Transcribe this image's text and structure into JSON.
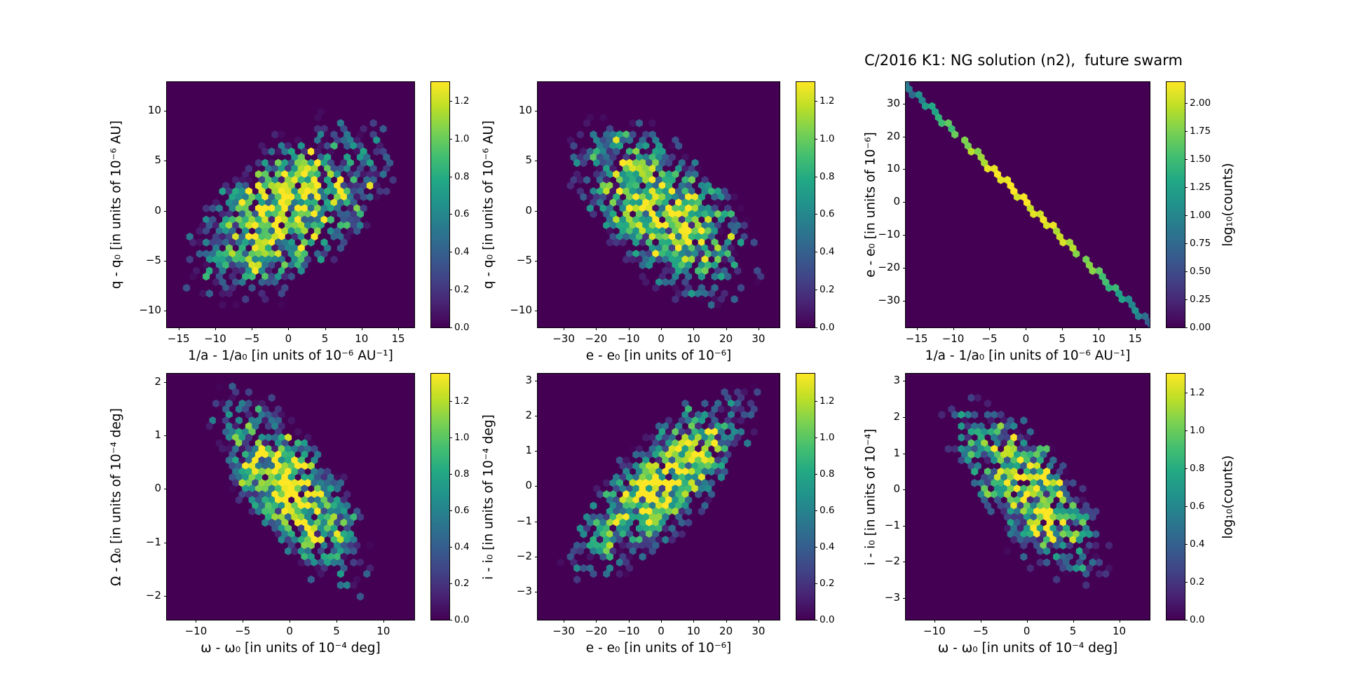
{
  "figure": {
    "title": "C/2016 K1: NG solution (n2),  future swarm",
    "background": "#ffffff",
    "colormap": "viridis",
    "colormap_stops": [
      "#440154",
      "#482475",
      "#414487",
      "#355f8d",
      "#2a788e",
      "#21918c",
      "#22a884",
      "#44bf70",
      "#7ad151",
      "#bddf26",
      "#fde725"
    ]
  },
  "chart_data": [
    {
      "id": "a",
      "row": 0,
      "col": 0,
      "type": "hexbin",
      "xlabel": "1/a - 1/a₀ [in units of 10⁻⁶ AU⁻¹]",
      "ylabel": "q - q₀ [in units of 10⁻⁶ AU]",
      "xlim": [
        -16.6,
        17.2
      ],
      "ylim": [
        -11.7,
        12.9
      ],
      "xticks": [
        -15,
        -10,
        -5,
        0,
        5,
        10,
        15
      ],
      "yticks": [
        -10,
        -5,
        0,
        5,
        10
      ],
      "distribution": {
        "kind": "gaussian2d",
        "center": [
          0,
          0
        ],
        "sigma": [
          5.5,
          3.6
        ],
        "rho": 0.55,
        "peak_counts": 18
      },
      "colorbar": {
        "ticks": [
          0.0,
          0.2,
          0.4,
          0.6,
          0.8,
          1.0,
          1.2
        ],
        "vmax": 1.3,
        "decimals": 1,
        "label": ""
      },
      "seed": 101
    },
    {
      "id": "b",
      "row": 0,
      "col": 1,
      "type": "hexbin",
      "xlabel": "e - e₀ [in units of 10⁻⁶]",
      "ylabel": "q - q₀ [in units of 10⁻⁶ AU]",
      "xlim": [
        -38,
        36.5
      ],
      "ylim": [
        -11.7,
        12.9
      ],
      "xticks": [
        -30,
        -20,
        -10,
        0,
        10,
        20,
        30
      ],
      "yticks": [
        -10,
        -5,
        0,
        5,
        10
      ],
      "distribution": {
        "kind": "gaussian2d",
        "center": [
          0,
          0
        ],
        "sigma": [
          11,
          3.6
        ],
        "rho": -0.55,
        "peak_counts": 18
      },
      "colorbar": {
        "ticks": [
          0.0,
          0.2,
          0.4,
          0.6,
          0.8,
          1.0,
          1.2
        ],
        "vmax": 1.3,
        "decimals": 1,
        "label": ""
      },
      "seed": 202
    },
    {
      "id": "c",
      "row": 0,
      "col": 2,
      "type": "hexbin",
      "xlabel": "1/a - 1/a₀ [in units of 10⁻⁶ AU⁻¹]",
      "ylabel": "e - e₀ [in units of 10⁻⁶]",
      "xlim": [
        -16.5,
        17
      ],
      "ylim": [
        -38,
        36.5
      ],
      "xticks": [
        -15,
        -10,
        -5,
        0,
        5,
        10,
        15
      ],
      "yticks": [
        -30,
        -20,
        -10,
        0,
        10,
        20,
        30
      ],
      "distribution": {
        "kind": "diagonal",
        "slope": -2.17,
        "sigma_along": 6.5,
        "peak_counts": 140
      },
      "colorbar": {
        "ticks": [
          0.0,
          0.25,
          0.5,
          0.75,
          1.0,
          1.25,
          1.5,
          1.75,
          2.0
        ],
        "vmax": 2.19,
        "decimals": 2,
        "label": "log₁₀(counts)"
      },
      "seed": 303
    },
    {
      "id": "d",
      "row": 1,
      "col": 0,
      "type": "hexbin",
      "xlabel": "ω - ω₀ [in units of 10⁻⁴ deg]",
      "ylabel": "Ω - Ω₀ [in units of 10⁻⁴ deg]",
      "xlim": [
        -13.1,
        13.3
      ],
      "ylim": [
        -2.45,
        2.16
      ],
      "xticks": [
        -10,
        -5,
        0,
        5,
        10
      ],
      "yticks": [
        -2,
        -1,
        0,
        1,
        2
      ],
      "distribution": {
        "kind": "gaussian2d",
        "center": [
          0,
          0
        ],
        "sigma": [
          3.3,
          0.72
        ],
        "rho": -0.72,
        "peak_counts": 20
      },
      "colorbar": {
        "ticks": [
          0.0,
          0.2,
          0.4,
          0.6,
          0.8,
          1.0,
          1.2
        ],
        "vmax": 1.35,
        "decimals": 1,
        "label": ""
      },
      "seed": 404
    },
    {
      "id": "e",
      "row": 1,
      "col": 1,
      "type": "hexbin",
      "xlabel": "e - e₀ [in units of 10⁻⁶]",
      "ylabel": "i - i₀ [in units of 10⁻⁴ deg]",
      "xlim": [
        -38,
        36.5
      ],
      "ylim": [
        -3.8,
        3.2
      ],
      "xticks": [
        -30,
        -20,
        -10,
        0,
        10,
        20,
        30
      ],
      "yticks": [
        -3,
        -2,
        -1,
        0,
        1,
        2,
        3
      ],
      "distribution": {
        "kind": "gaussian2d",
        "center": [
          0,
          0
        ],
        "sigma": [
          11,
          1.05
        ],
        "rho": 0.75,
        "peak_counts": 20
      },
      "colorbar": {
        "ticks": [
          0.0,
          0.2,
          0.4,
          0.6,
          0.8,
          1.0,
          1.2
        ],
        "vmax": 1.35,
        "decimals": 1,
        "label": ""
      },
      "seed": 505
    },
    {
      "id": "f",
      "row": 1,
      "col": 2,
      "type": "hexbin",
      "xlabel": "ω - ω₀ [in units of 10⁻⁴ deg]",
      "ylabel": "i - i₀ [in units of 10⁻⁴]",
      "xlim": [
        -13.1,
        13.3
      ],
      "ylim": [
        -3.6,
        3.2
      ],
      "xticks": [
        -10,
        -5,
        0,
        5,
        10
      ],
      "yticks": [
        -3,
        -2,
        -1,
        0,
        1,
        2,
        3
      ],
      "distribution": {
        "kind": "gaussian2d",
        "center": [
          0,
          0
        ],
        "sigma": [
          3.3,
          1.0
        ],
        "rho": -0.7,
        "peak_counts": 20
      },
      "colorbar": {
        "ticks": [
          0.0,
          0.2,
          0.4,
          0.6,
          0.8,
          1.0,
          1.2
        ],
        "vmax": 1.3,
        "decimals": 1,
        "label": "log₁₀(counts)"
      },
      "seed": 606
    }
  ]
}
